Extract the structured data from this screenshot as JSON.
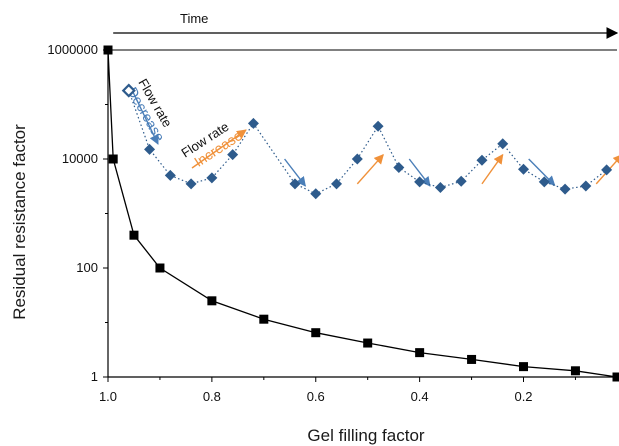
{
  "chart_data": {
    "type": "scatter",
    "xlabel": "Gel filling factor",
    "ylabel": "Residual resistance factor",
    "xlim": [
      1.0,
      0.02
    ],
    "x_reversed": true,
    "ylim": [
      1,
      1000000
    ],
    "yscale": "log",
    "x_ticks": [
      1.0,
      0.8,
      0.6,
      0.4,
      0.2
    ],
    "x_tick_labels": [
      "1.0",
      "0.8",
      "0.6",
      "0.4",
      "0.2"
    ],
    "y_ticks": [
      1,
      100,
      10000,
      1000000
    ],
    "y_tick_labels": [
      "1",
      "100",
      "10000",
      "1000000"
    ],
    "grid": false,
    "series": [
      {
        "marker": "square",
        "color": "#000000",
        "line": "solid",
        "x": [
          1.0,
          0.99,
          0.95,
          0.9,
          0.8,
          0.7,
          0.6,
          0.5,
          0.4,
          0.3,
          0.2,
          0.1,
          0.02
        ],
        "y": [
          1000000,
          10000,
          400,
          100,
          25,
          11.5,
          6.5,
          4.2,
          2.8,
          2.1,
          1.55,
          1.3,
          1.0
        ]
      },
      {
        "marker": "diamond",
        "color": "#2e5b8c",
        "line": "dotted",
        "x": [
          0.96,
          0.92,
          0.88,
          0.84,
          0.8,
          0.76,
          0.72,
          0.64,
          0.6,
          0.56,
          0.52,
          0.48,
          0.44,
          0.4,
          0.36,
          0.32,
          0.28,
          0.24,
          0.2,
          0.16,
          0.12,
          0.08,
          0.04
        ],
        "y": [
          180000,
          15000,
          5000,
          3500,
          4500,
          12000,
          45000,
          3500,
          2300,
          3500,
          10000,
          40000,
          7000,
          3800,
          3000,
          3900,
          9500,
          19000,
          6500,
          3800,
          2800,
          3200,
          6300
        ],
        "hollow_first_point": true
      }
    ],
    "annotations": {
      "time": "Time",
      "flow_rate": "Flow rate",
      "decrease": "Decrease",
      "increase": "Increase"
    },
    "arrow_colors": {
      "decrease": "#4a7eb8",
      "increase": "#f0913a",
      "time": "#000000"
    },
    "decrease_arrows": [
      [
        0.66,
        10000,
        0.62,
        3200
      ],
      [
        0.42,
        10000,
        0.38,
        3200
      ],
      [
        0.19,
        10000,
        0.14,
        3300
      ]
    ],
    "increase_arrows": [
      [
        0.52,
        3500,
        0.47,
        12000
      ],
      [
        0.28,
        3500,
        0.24,
        12000
      ],
      [
        0.06,
        3500,
        0.01,
        12000
      ]
    ]
  }
}
